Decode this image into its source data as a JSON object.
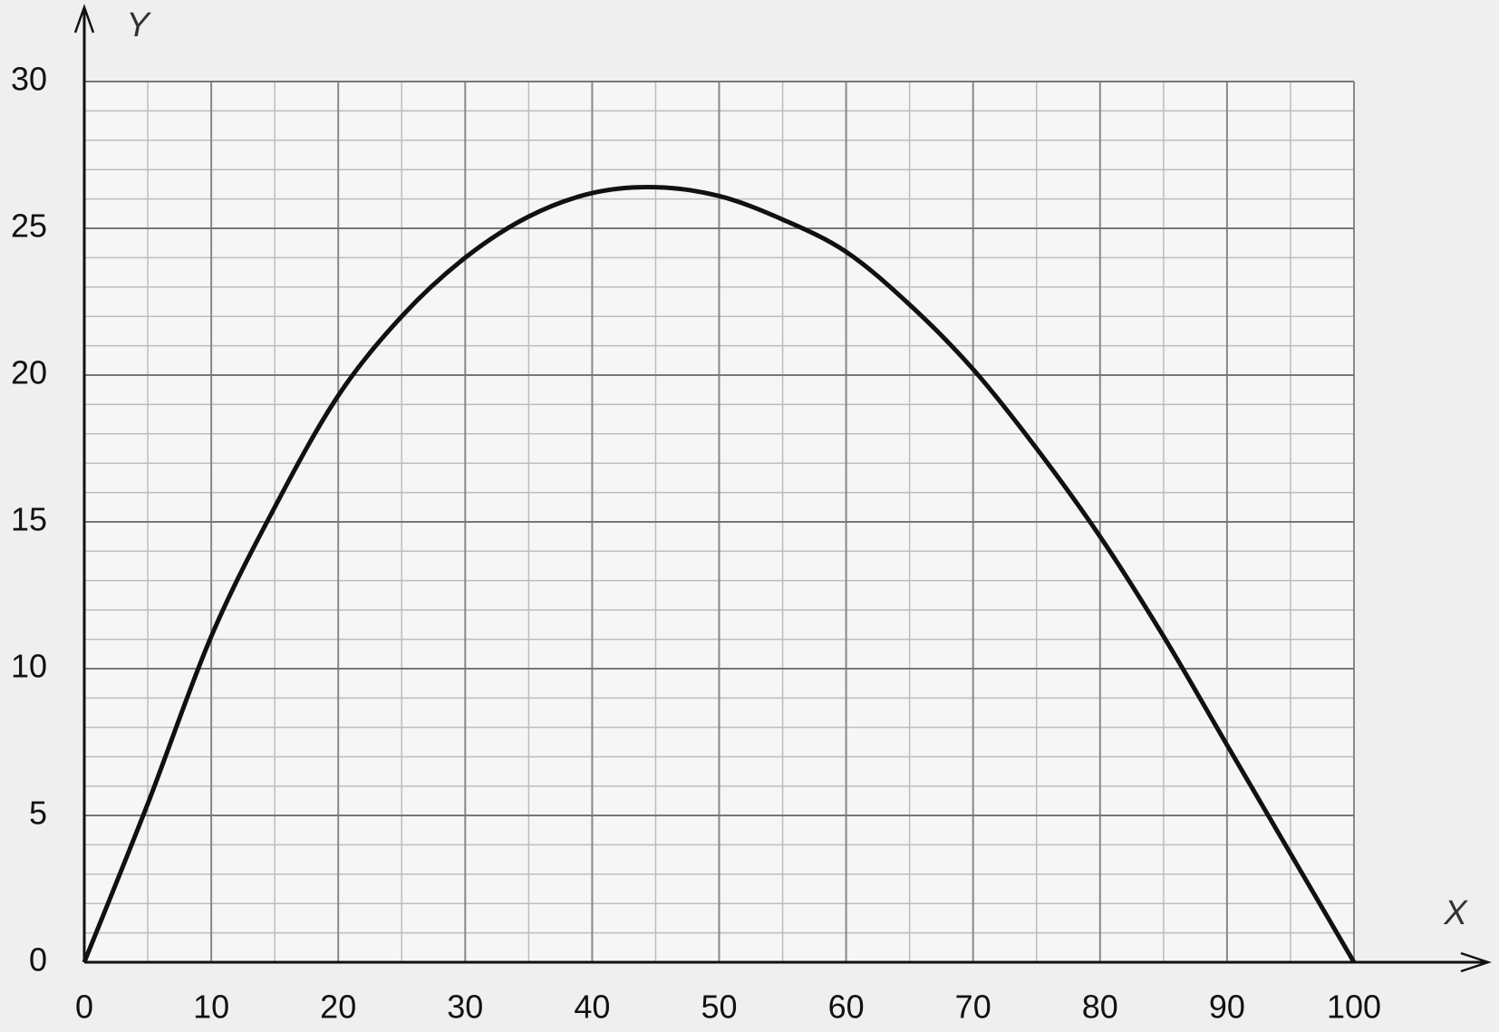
{
  "chart_data": {
    "type": "line",
    "x_label": "X",
    "y_label": "Y",
    "x": [
      0,
      5,
      10,
      15,
      20,
      25,
      30,
      35,
      40,
      45,
      50,
      55,
      60,
      65,
      70,
      75,
      80,
      85,
      90,
      95,
      100
    ],
    "series": [
      {
        "color": "#111111",
        "values": [
          0,
          5.4,
          11.1,
          15.5,
          19.3,
          22,
          24,
          25.4,
          26.2,
          26.4,
          26.1,
          25.3,
          24.2,
          22.4,
          20.2,
          17.5,
          14.5,
          11.1,
          7.4,
          3.7,
          0
        ]
      }
    ],
    "xlim": [
      0,
      100
    ],
    "ylim": [
      0,
      30
    ],
    "xticks": [
      0,
      10,
      20,
      30,
      40,
      50,
      60,
      70,
      80,
      90,
      100
    ],
    "yticks": [
      0,
      5,
      10,
      15,
      20,
      25,
      30
    ],
    "minor_xticks": [
      5,
      15,
      25,
      35,
      45,
      55,
      65,
      75,
      85,
      95
    ],
    "minor_yticks": [
      1,
      2,
      3,
      4,
      6,
      7,
      8,
      9,
      11,
      12,
      13,
      14,
      16,
      17,
      18,
      19,
      21,
      22,
      23,
      24,
      26,
      27,
      28,
      29
    ],
    "grid": true
  }
}
